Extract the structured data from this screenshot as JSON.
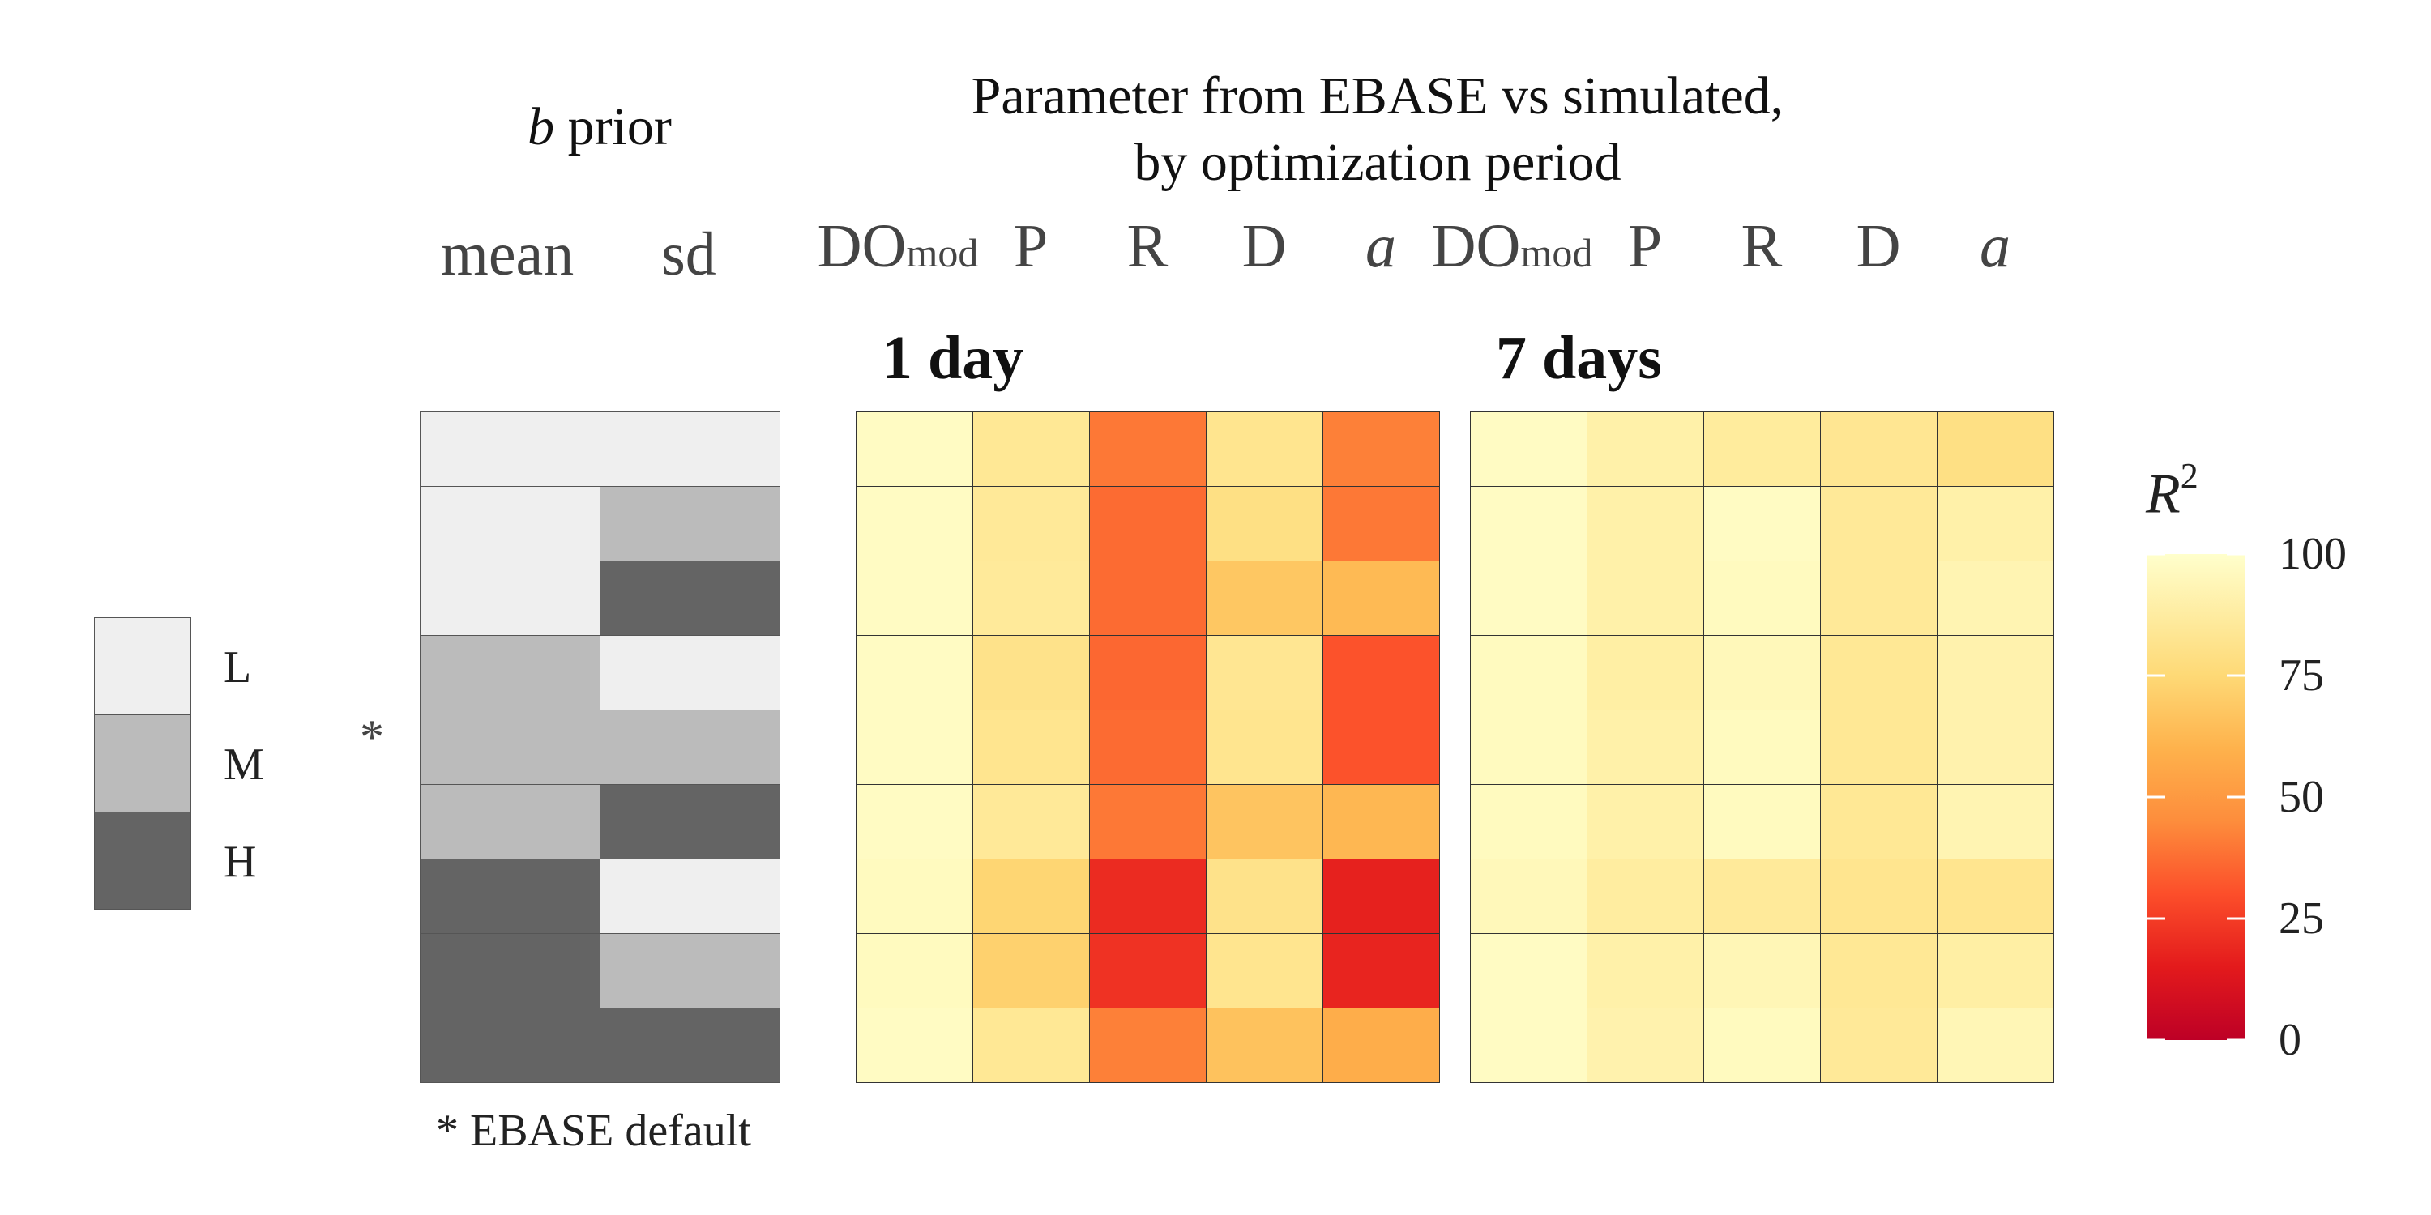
{
  "prior_header": {
    "b": "b",
    "rest": " prior"
  },
  "main_title": {
    "line1": "Parameter from EBASE vs simulated,",
    "line2": "by optimization period"
  },
  "prior_columns": [
    "mean",
    "sd"
  ],
  "param_columns": [
    {
      "main": "DO",
      "sub": "mod",
      "italic": false
    },
    {
      "main": "P",
      "italic": false
    },
    {
      "main": "R",
      "italic": false
    },
    {
      "main": "D",
      "italic": false
    },
    {
      "main": "a",
      "italic": true
    }
  ],
  "level_legend": {
    "items": [
      "L",
      "M",
      "H"
    ],
    "colors": [
      "#efefef",
      "#bbbbbb",
      "#646464"
    ]
  },
  "default_marker": "*",
  "default_row_index": 4,
  "footnote": "* EBASE default",
  "colorbar": {
    "title_main": "R",
    "title_sup": "2",
    "ticks": [
      "100",
      "75",
      "50",
      "25",
      "0"
    ]
  },
  "chart_data": {
    "type": "heatmap",
    "colorscale": {
      "name": "YlOrRd",
      "min": 0,
      "max": 100
    },
    "prior_levels": {
      "mean": [
        "L",
        "L",
        "L",
        "M",
        "M",
        "M",
        "H",
        "H",
        "H"
      ],
      "sd": [
        "L",
        "M",
        "H",
        "L",
        "M",
        "H",
        "L",
        "M",
        "H"
      ]
    },
    "panels": [
      {
        "title": "1 day",
        "columns": [
          "DOmod",
          "P",
          "R",
          "D",
          "a"
        ],
        "values": [
          [
            98,
            86,
            40,
            84,
            42
          ],
          [
            98,
            87,
            37,
            80,
            40
          ],
          [
            98,
            88,
            37,
            68,
            63
          ],
          [
            98,
            82,
            36,
            85,
            31
          ],
          [
            98,
            84,
            37,
            84,
            31
          ],
          [
            98,
            87,
            40,
            67,
            62
          ],
          [
            97,
            74,
            20,
            82,
            17
          ],
          [
            97,
            72,
            22,
            84,
            18
          ],
          [
            98,
            86,
            42,
            66,
            58
          ]
        ]
      },
      {
        "title": "7 days",
        "columns": [
          "DOmod",
          "P",
          "R",
          "D",
          "a"
        ],
        "values": [
          [
            98,
            92,
            89,
            85,
            80
          ],
          [
            98,
            92,
            98,
            87,
            92
          ],
          [
            98,
            92,
            97,
            87,
            94
          ],
          [
            97,
            91,
            96,
            86,
            93
          ],
          [
            97,
            92,
            97,
            86,
            93
          ],
          [
            97,
            92,
            97,
            86,
            94
          ],
          [
            96,
            90,
            88,
            84,
            84
          ],
          [
            98,
            92,
            95,
            86,
            91
          ],
          [
            98,
            93,
            97,
            87,
            95
          ]
        ]
      }
    ]
  }
}
